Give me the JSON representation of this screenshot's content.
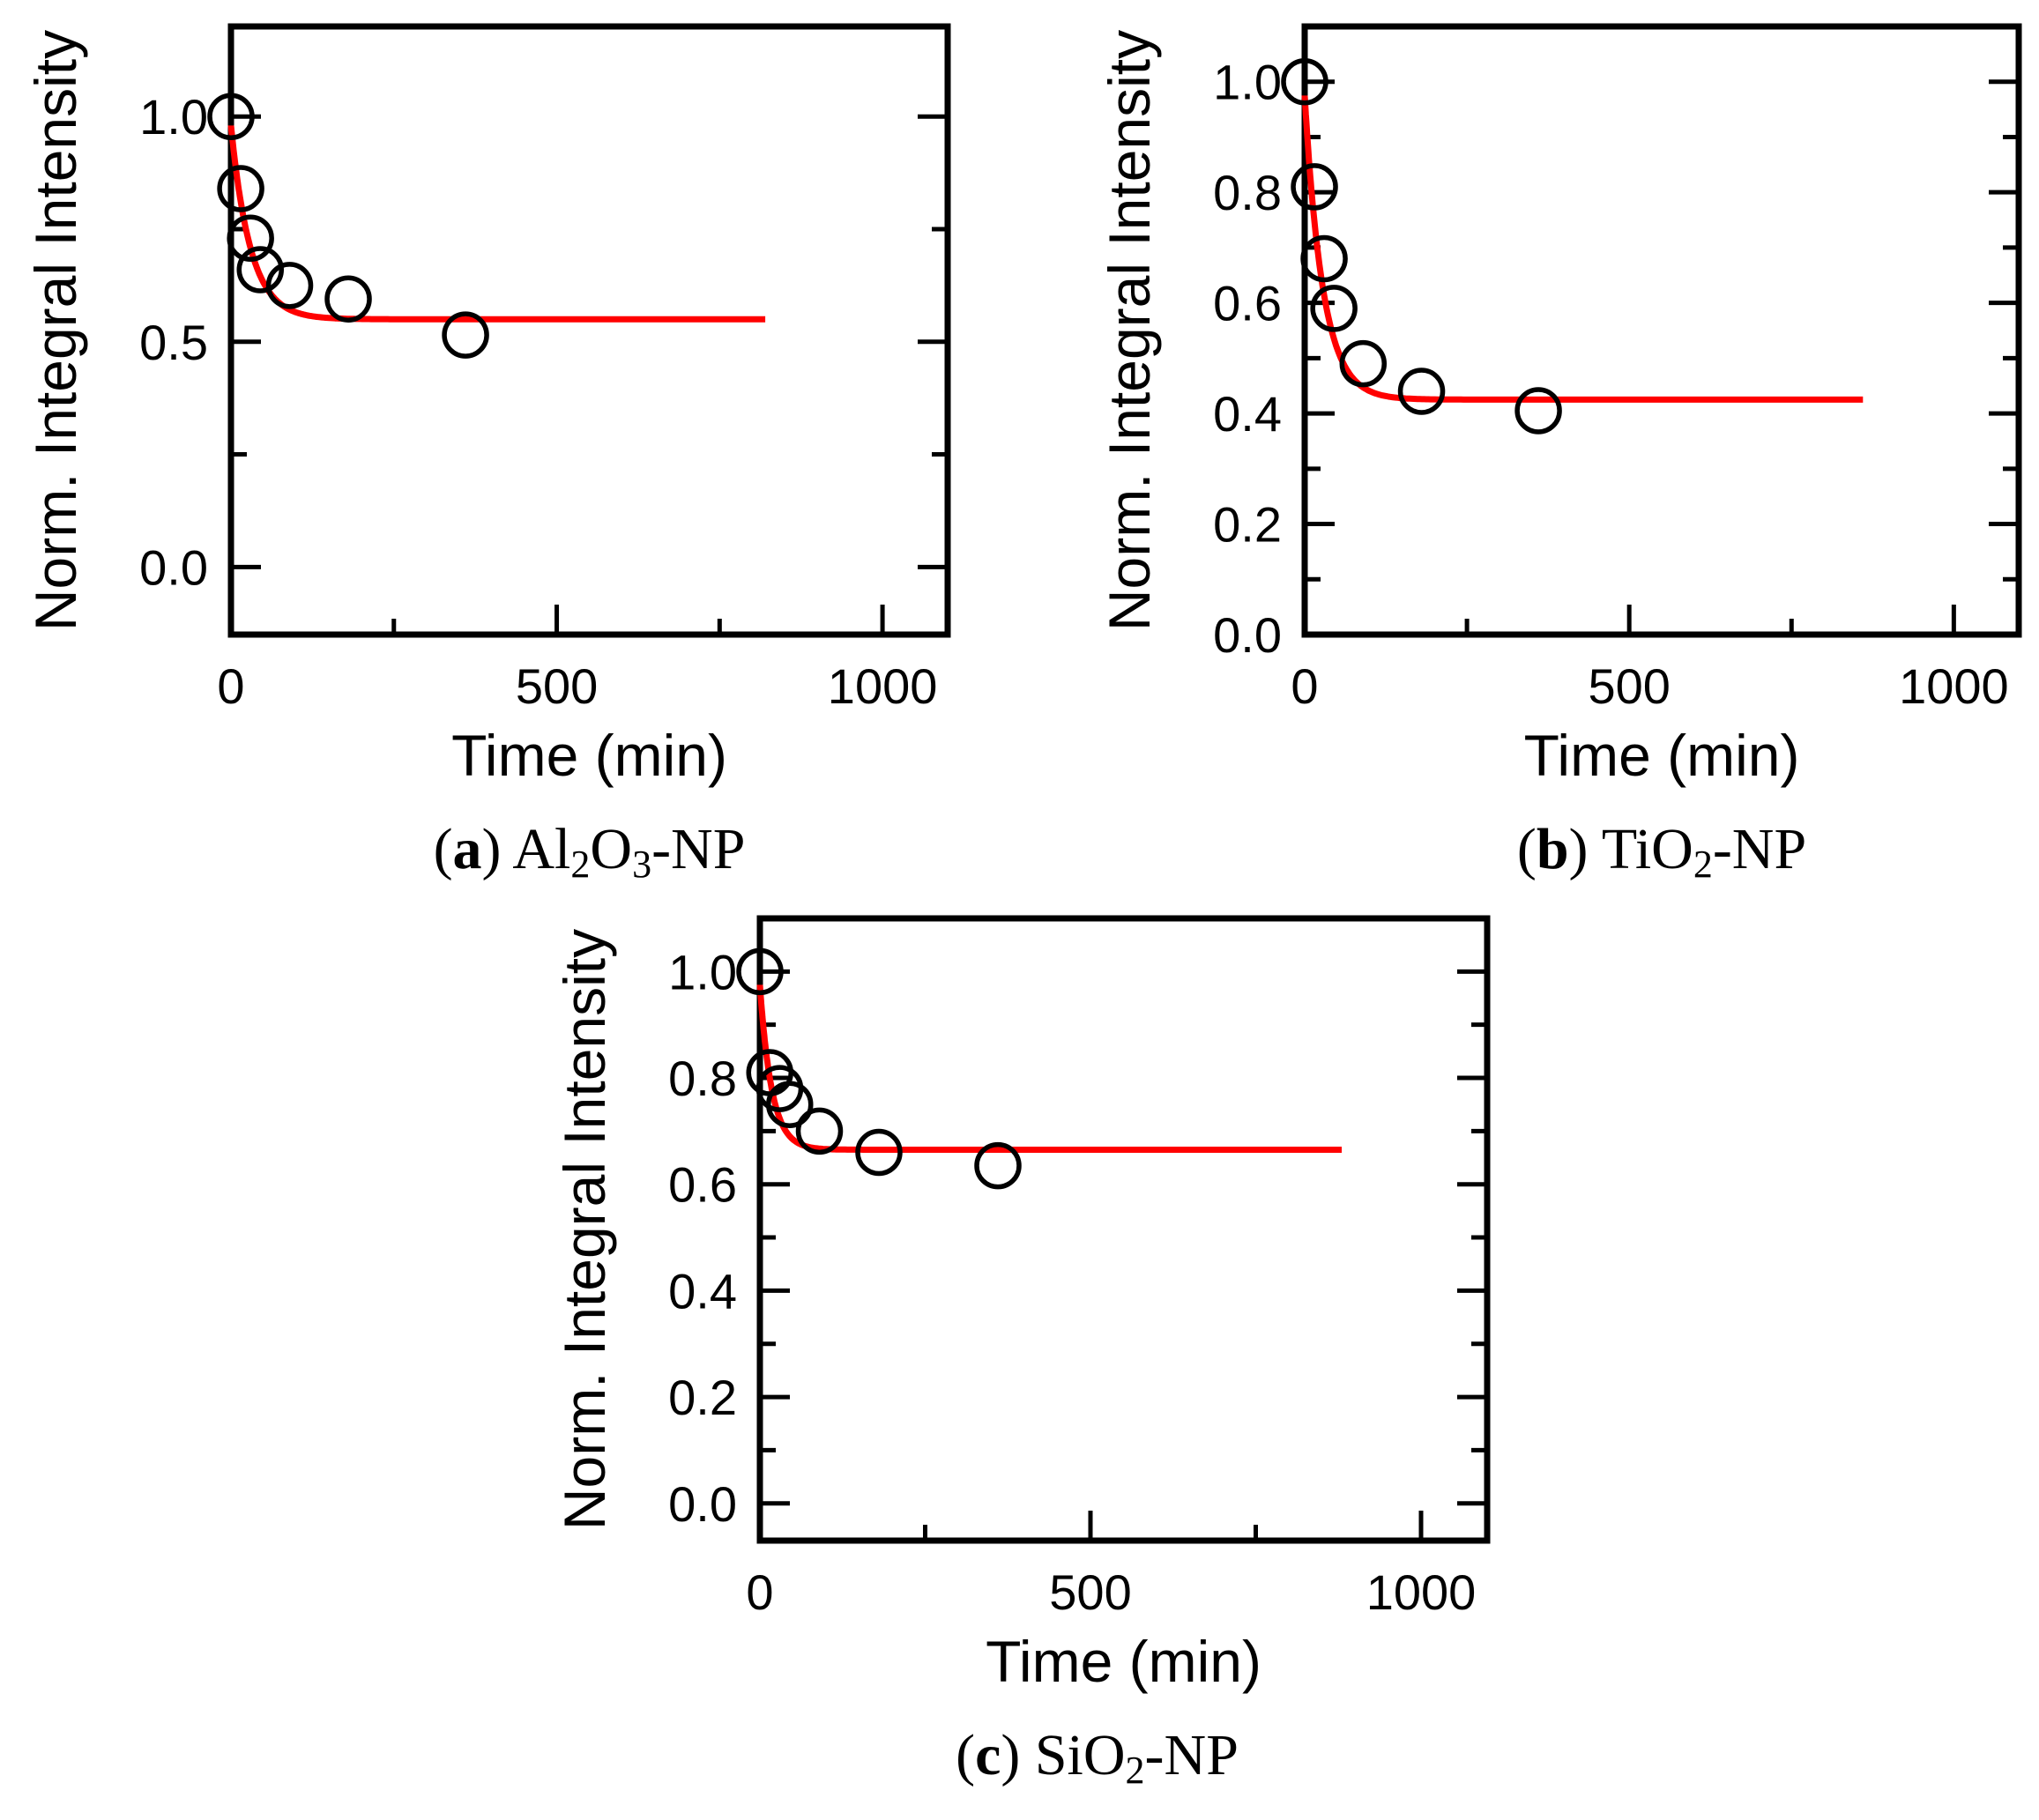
{
  "chart_data": [
    {
      "id": "a",
      "type": "scatter",
      "title": "",
      "caption": {
        "letter": "a",
        "pre": "Al",
        "sub1": "2",
        "mid": "O",
        "sub2": "3",
        "post": "-NP"
      },
      "xlabel": "Time (min)",
      "ylabel": "Norm. Integral Intensity",
      "xlim": [
        0,
        1100
      ],
      "ylim": [
        -0.15,
        1.2
      ],
      "xticks": [
        0,
        500,
        1000
      ],
      "xticks_minor": [
        250,
        750
      ],
      "yticks": [
        0.0,
        0.5,
        1.0
      ],
      "yticks_minor": [
        0.25,
        0.75
      ],
      "ytick_format": 1,
      "grid": false,
      "series": [
        {
          "name": "data",
          "type": "scatter",
          "x": [
            0,
            15,
            30,
            45,
            90,
            180,
            360
          ],
          "y": [
            1.0,
            0.84,
            0.73,
            0.66,
            0.625,
            0.595,
            0.515
          ]
        },
        {
          "name": "fit",
          "type": "line",
          "color": "#ff0000",
          "model": {
            "form": "exp_decay",
            "y0": 0.55,
            "amp": 0.43,
            "tau": 30,
            "xmin": 0,
            "xmax": 820
          }
        }
      ]
    },
    {
      "id": "b",
      "type": "scatter",
      "title": "",
      "caption": {
        "letter": "b",
        "pre": "TiO",
        "sub1": "2",
        "mid": "",
        "sub2": "",
        "post": "-NP"
      },
      "xlabel": "Time (min)",
      "ylabel": "Norm. Integral Intensity",
      "xlim": [
        0,
        1100
      ],
      "ylim": [
        0.0,
        1.1
      ],
      "xticks": [
        0,
        500,
        1000
      ],
      "xticks_minor": [
        250,
        750
      ],
      "yticks": [
        0.0,
        0.2,
        0.4,
        0.6,
        0.8,
        1.0
      ],
      "yticks_minor": [
        0.1,
        0.3,
        0.5,
        0.7,
        0.9
      ],
      "ytick_format": 1,
      "grid": false,
      "series": [
        {
          "name": "data",
          "type": "scatter",
          "x": [
            0,
            15,
            30,
            45,
            90,
            180,
            360
          ],
          "y": [
            1.0,
            0.81,
            0.68,
            0.59,
            0.49,
            0.44,
            0.405
          ]
        },
        {
          "name": "fit",
          "type": "line",
          "color": "#ff0000",
          "model": {
            "form": "exp_decay",
            "y0": 0.425,
            "amp": 0.55,
            "tau": 28,
            "xmin": 0,
            "xmax": 860
          }
        }
      ]
    },
    {
      "id": "c",
      "type": "scatter",
      "title": "",
      "caption": {
        "letter": "c",
        "pre": "SiO",
        "sub1": "2",
        "mid": "",
        "sub2": "",
        "post": "-NP"
      },
      "xlabel": "Time (min)",
      "ylabel": "Norm. Integral Intensity",
      "xlim": [
        0,
        1100
      ],
      "ylim": [
        -0.07,
        1.1
      ],
      "xticks": [
        0,
        500,
        1000
      ],
      "xticks_minor": [
        250,
        750
      ],
      "yticks": [
        0.0,
        0.2,
        0.4,
        0.6,
        0.8,
        1.0
      ],
      "yticks_minor": [
        0.1,
        0.3,
        0.5,
        0.7,
        0.9
      ],
      "ytick_format": 1,
      "grid": false,
      "series": [
        {
          "name": "data",
          "type": "scatter",
          "x": [
            0,
            15,
            30,
            45,
            90,
            180,
            360
          ],
          "y": [
            1.0,
            0.81,
            0.78,
            0.75,
            0.7,
            0.66,
            0.635
          ]
        },
        {
          "name": "fit",
          "type": "line",
          "color": "#ff0000",
          "model": {
            "form": "exp_decay",
            "y0": 0.665,
            "amp": 0.31,
            "tau": 18,
            "xmin": 0,
            "xmax": 880
          }
        }
      ]
    }
  ]
}
